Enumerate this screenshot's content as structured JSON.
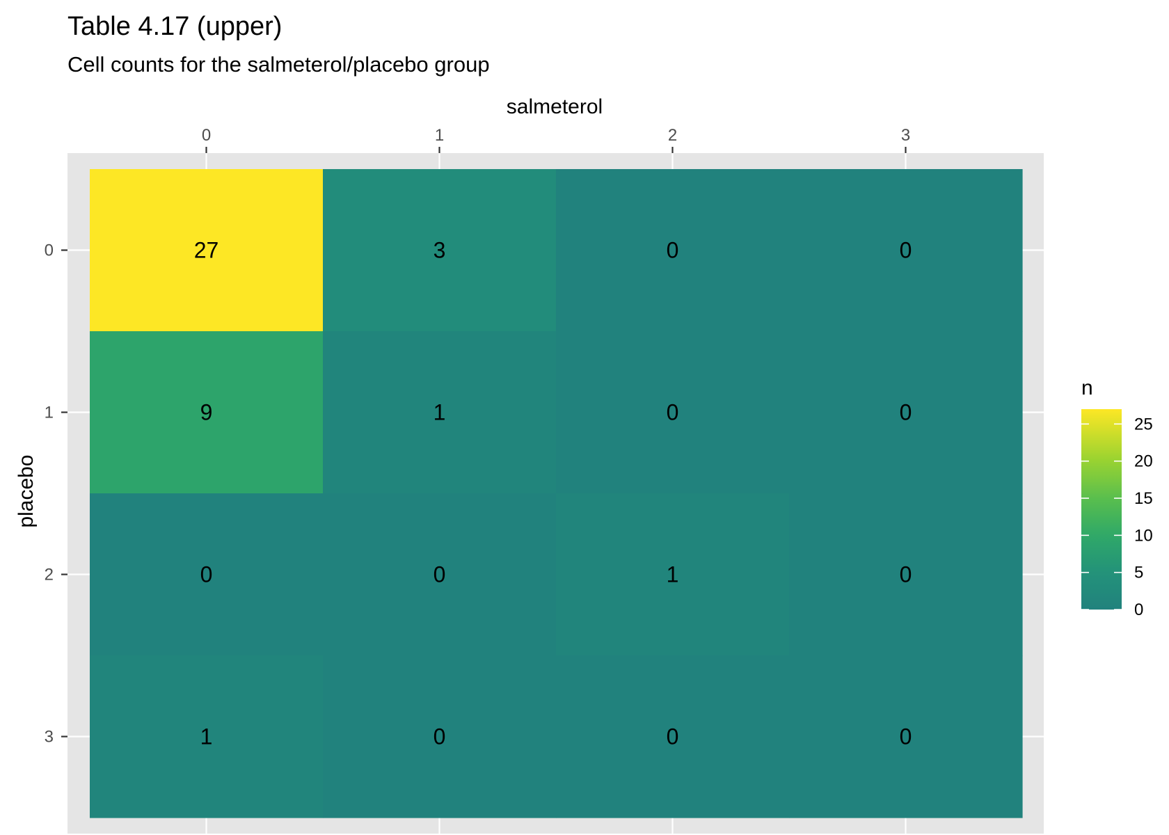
{
  "chart_data": {
    "type": "heatmap",
    "title": "Table 4.17 (upper)",
    "subtitle": "Cell counts for the salmeterol/placebo group",
    "xlabel": "salmeterol",
    "ylabel": "placebo",
    "x_categories": [
      "0",
      "1",
      "2",
      "3"
    ],
    "y_categories": [
      "0",
      "1",
      "2",
      "3"
    ],
    "values": [
      [
        27,
        3,
        0,
        0
      ],
      [
        9,
        1,
        0,
        0
      ],
      [
        0,
        0,
        1,
        0
      ],
      [
        1,
        0,
        0,
        0
      ]
    ],
    "x_axis_position": "top",
    "legend": {
      "title": "n",
      "position": "right",
      "ticks": [
        0,
        5,
        10,
        15,
        20,
        25
      ],
      "range": [
        0,
        27
      ]
    },
    "colorscale": "viridis",
    "colors": {
      "panel_background": "#e5e5e5",
      "grid": "#ffffff"
    },
    "grid": true
  }
}
